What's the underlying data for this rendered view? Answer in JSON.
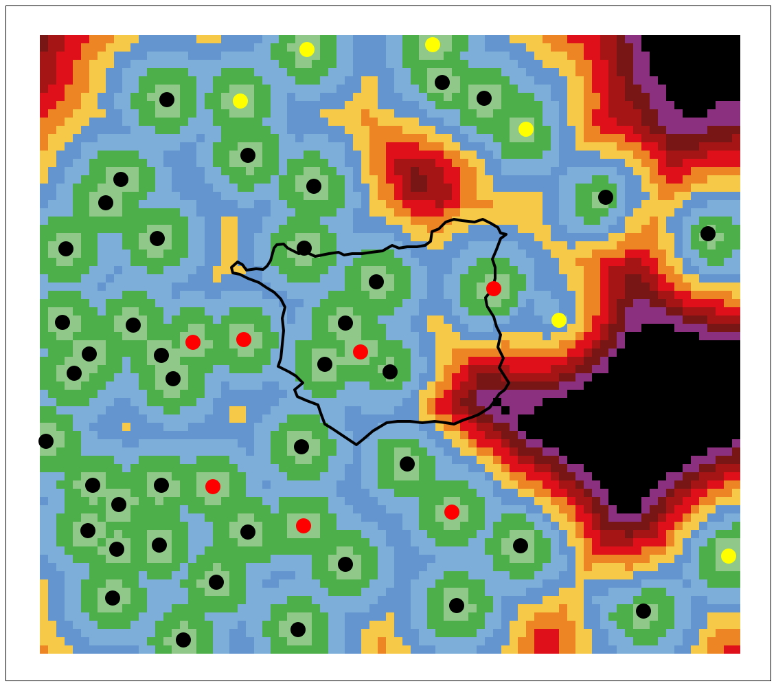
{
  "map": {
    "legend": [],
    "palette": {
      "band_0": "#8fc889",
      "band_1": "#4daf4a",
      "band_2": "#7dadd9",
      "band_3": "#6495cf",
      "band_4": "#f7c948",
      "band_5": "#ee8524",
      "band_6": "#e0101a",
      "band_7": "#a51515",
      "band_8": "#781615",
      "band_9": "#8b2f7f",
      "band_10": "#000000"
    },
    "marker_colors": {
      "black": "#000000",
      "red": "#ff0000",
      "yellow": "#ffff00"
    },
    "boundary_color": "#000000"
  }
}
